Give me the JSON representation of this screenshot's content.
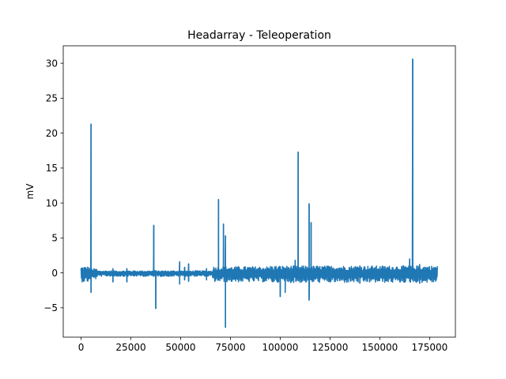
{
  "chart_data": {
    "type": "line",
    "title": "Headarray - Teleoperation",
    "xlabel": "",
    "ylabel": "mV",
    "xlim": [
      -8950,
      187950
    ],
    "ylim": [
      -9.2,
      32.5
    ],
    "grid": false,
    "legend": false,
    "x_ticks": [
      0,
      25000,
      50000,
      75000,
      100000,
      125000,
      150000,
      175000
    ],
    "x_tick_labels": [
      "0",
      "25000",
      "50000",
      "75000",
      "100000",
      "125000",
      "150000",
      "175000"
    ],
    "y_ticks": [
      -5,
      0,
      5,
      10,
      15,
      20,
      25,
      30
    ],
    "y_tick_labels": [
      "−5",
      "0",
      "5",
      "10",
      "15",
      "20",
      "25",
      "30"
    ],
    "series": [
      {
        "color": "#1f77b4",
        "n_points": 179000,
        "baseline_band": [
          {
            "from": 0,
            "to": 4500,
            "low": -1.3,
            "high": 0.9
          },
          {
            "from": 4500,
            "to": 8000,
            "low": -0.9,
            "high": 0.6
          },
          {
            "from": 8000,
            "to": 66000,
            "low": -0.5,
            "high": 0.3
          },
          {
            "from": 66000,
            "to": 95000,
            "low": -1.3,
            "high": 0.9
          },
          {
            "from": 95000,
            "to": 179000,
            "low": -1.4,
            "high": 1.0
          }
        ],
        "spikes": [
          {
            "x": 5000,
            "min": -2.8,
            "max": 21.3
          },
          {
            "x": 16000,
            "min": -1.3,
            "max": 0.6
          },
          {
            "x": 23000,
            "min": -1.3,
            "max": 0.6
          },
          {
            "x": 36500,
            "min": -0.5,
            "max": 6.8
          },
          {
            "x": 37500,
            "min": -5.1,
            "max": 0.3
          },
          {
            "x": 49500,
            "min": -1.6,
            "max": 1.6
          },
          {
            "x": 52000,
            "min": -1.0,
            "max": 0.8
          },
          {
            "x": 54000,
            "min": -1.2,
            "max": 1.3
          },
          {
            "x": 63000,
            "min": -1.0,
            "max": 0.6
          },
          {
            "x": 69000,
            "min": -0.5,
            "max": 10.5
          },
          {
            "x": 71500,
            "min": -0.5,
            "max": 7.0
          },
          {
            "x": 72500,
            "min": -7.8,
            "max": 5.3
          },
          {
            "x": 100000,
            "min": -3.4,
            "max": 0.8
          },
          {
            "x": 102500,
            "min": -2.8,
            "max": 0.7
          },
          {
            "x": 107500,
            "min": -0.5,
            "max": 1.8
          },
          {
            "x": 109000,
            "min": -0.5,
            "max": 17.3
          },
          {
            "x": 114500,
            "min": -3.9,
            "max": 9.9
          },
          {
            "x": 115500,
            "min": -1.0,
            "max": 7.2
          },
          {
            "x": 140000,
            "min": -1.5,
            "max": 1.0
          },
          {
            "x": 165000,
            "min": -1.2,
            "max": 2.0
          },
          {
            "x": 166500,
            "min": -0.8,
            "max": 30.6
          },
          {
            "x": 170000,
            "min": -1.5,
            "max": 1.2
          }
        ]
      }
    ]
  }
}
